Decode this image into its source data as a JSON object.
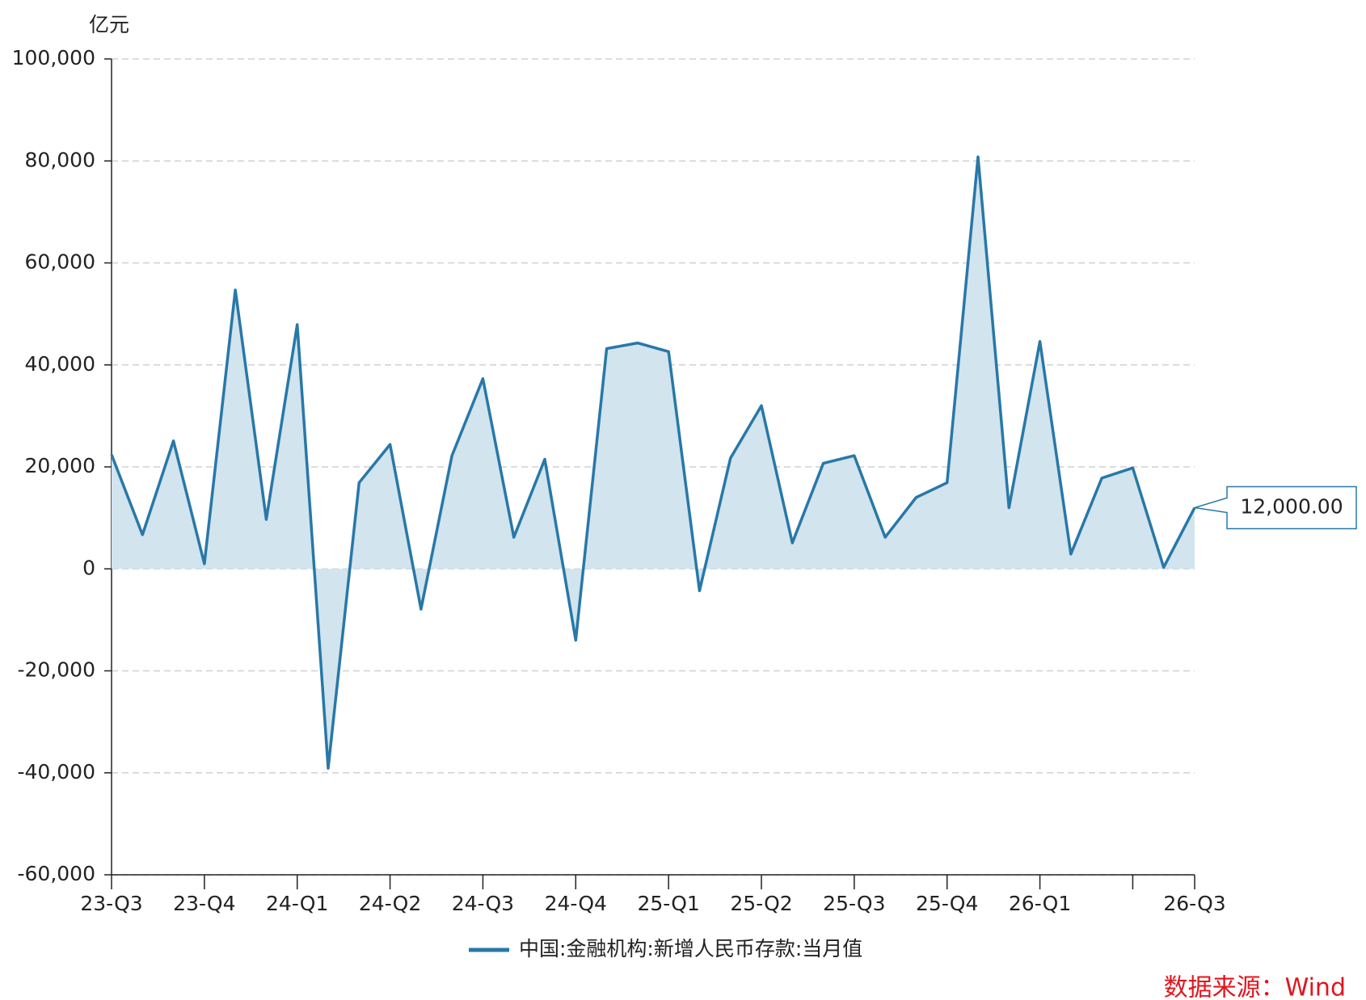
{
  "chart_data": {
    "type": "area",
    "unit": "亿元",
    "source": "数据来源：Wind",
    "categories": [
      "23-Q3",
      null,
      null,
      "23-Q4",
      null,
      null,
      "24-Q1",
      null,
      null,
      "24-Q2",
      null,
      null,
      "24-Q3",
      null,
      null,
      "24-Q4",
      null,
      null,
      "25-Q1",
      null,
      null,
      "25-Q2",
      null,
      null,
      "25-Q3",
      null,
      null,
      "25-Q4",
      null,
      null,
      "26-Q1",
      null,
      null,
      null,
      null,
      "26-Q3"
    ],
    "series": [
      {
        "name": "中国:金融机构:新增人民币存款:当月值",
        "color": "#2878a8",
        "fill": "#d2e4ee",
        "values": [
          22400,
          6700,
          25100,
          1000,
          54700,
          9700,
          47900,
          -39100,
          16900,
          24400,
          -7900,
          22200,
          37300,
          6200,
          21500,
          -14000,
          43200,
          44300,
          42600,
          -4300,
          21700,
          32000,
          5100,
          20700,
          22200,
          6200,
          14000,
          16900,
          80800,
          12000,
          44600,
          2900,
          17800,
          19800,
          300,
          12000
        ],
        "value_labels": [
          null,
          null,
          null,
          null,
          null,
          null,
          null,
          null,
          null,
          null,
          null,
          null,
          null,
          null,
          null,
          null,
          null,
          null,
          null,
          null,
          null,
          null,
          null,
          null,
          null,
          null,
          null,
          null,
          null,
          null,
          null,
          null,
          null,
          null,
          null,
          "12,000.00"
        ]
      }
    ],
    "ylim": [
      -60000,
      100000
    ],
    "yticks": [
      {
        "value": -60000,
        "label": "-60,000"
      },
      {
        "value": -40000,
        "label": "-40,000"
      },
      {
        "value": -20000,
        "label": "-20,000"
      },
      0,
      {
        "value": 20000,
        "label": "20,000"
      },
      {
        "value": 40000,
        "label": "40,000"
      },
      {
        "value": 60000,
        "label": "60,000"
      },
      {
        "value": 80000,
        "label": "80,000"
      },
      {
        "value": 100000,
        "label": "100,000"
      }
    ],
    "grid": true
  }
}
